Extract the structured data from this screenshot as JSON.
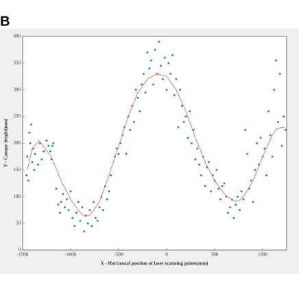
{
  "chart_data": {
    "type": "scatter",
    "panel_label": "B",
    "x_label": "X - Horizontal position of laser scanning points(mm)",
    "y_label": "Y - Canopy height(mm)",
    "xlim": [
      -1500,
      1250
    ],
    "ylim": [
      0,
      400
    ],
    "xticks": [
      -1500,
      -1000,
      -500,
      0,
      500,
      1000
    ],
    "yticks": [
      0,
      50,
      100,
      150,
      200,
      250,
      300,
      350,
      400
    ],
    "color": "#2e86c1",
    "x": [
      -1460,
      -1450,
      -1440,
      -1430,
      -1420,
      -1410,
      -1400,
      -1390,
      -1380,
      -1370,
      -1340,
      -1320,
      -1300,
      -1280,
      -1250,
      -1230,
      -1210,
      -1200,
      -1190,
      -1180,
      -1150,
      -1130,
      -1110,
      -1100,
      -1080,
      -1060,
      -1040,
      -1020,
      -1000,
      -980,
      -960,
      -940,
      -920,
      -900,
      -880,
      -860,
      -840,
      -820,
      -800,
      -780,
      -760,
      -740,
      -720,
      -700,
      -680,
      -660,
      -640,
      -620,
      -600,
      -580,
      -540,
      -520,
      -500,
      -480,
      -460,
      -440,
      -420,
      -400,
      -380,
      -360,
      -340,
      -320,
      -300,
      -280,
      -260,
      -240,
      -220,
      -200,
      -180,
      -160,
      -140,
      -120,
      -100,
      -80,
      -60,
      -40,
      -20,
      0,
      20,
      40,
      60,
      80,
      100,
      120,
      140,
      160,
      180,
      200,
      220,
      240,
      260,
      280,
      300,
      320,
      340,
      360,
      380,
      400,
      420,
      440,
      460,
      480,
      500,
      520,
      540,
      560,
      580,
      600,
      620,
      640,
      660,
      680,
      700,
      720,
      740,
      760,
      780,
      800,
      820,
      840,
      860,
      880,
      900,
      920,
      940,
      960,
      980,
      1000,
      1020,
      1040,
      1060,
      1080,
      1100,
      1120,
      1140,
      1160,
      1180,
      1200,
      1220,
      1240
    ],
    "values": [
      140,
      175,
      130,
      220,
      200,
      235,
      165,
      190,
      150,
      180,
      160,
      200,
      170,
      185,
      205,
      195,
      185,
      170,
      195,
      200,
      115,
      85,
      70,
      90,
      105,
      80,
      95,
      75,
      110,
      60,
      45,
      70,
      90,
      55,
      80,
      35,
      65,
      50,
      75,
      45,
      90,
      60,
      55,
      80,
      100,
      75,
      120,
      95,
      110,
      140,
      175,
      190,
      180,
      200,
      215,
      230,
      180,
      250,
      225,
      270,
      240,
      300,
      285,
      260,
      310,
      330,
      295,
      370,
      340,
      355,
      310,
      375,
      330,
      390,
      345,
      320,
      360,
      300,
      350,
      330,
      365,
      290,
      320,
      230,
      300,
      270,
      240,
      250,
      210,
      260,
      200,
      225,
      170,
      190,
      160,
      140,
      175,
      120,
      155,
      165,
      110,
      140,
      130,
      150,
      115,
      95,
      120,
      125,
      100,
      70,
      80,
      95,
      60,
      85,
      100,
      75,
      110,
      95,
      225,
      180,
      115,
      130,
      90,
      150,
      200,
      160,
      210,
      175,
      190,
      140,
      260,
      215,
      175,
      300,
      355,
      240,
      330,
      195,
      250,
      225
    ],
    "fit": {
      "color": "#e07b53",
      "x": [
        -1450,
        -1400,
        -1330,
        -1200,
        -1100,
        -1000,
        -900,
        -850,
        -800,
        -700,
        -600,
        -500,
        -400,
        -300,
        -200,
        -100,
        0,
        100,
        200,
        300,
        400,
        500,
        600,
        700,
        750,
        800,
        900,
        1000,
        1100,
        1150,
        1230
      ],
      "values": [
        150,
        190,
        205,
        175,
        130,
        95,
        70,
        63,
        65,
        90,
        140,
        195,
        250,
        295,
        320,
        330,
        325,
        300,
        260,
        210,
        165,
        130,
        105,
        92,
        92,
        100,
        130,
        175,
        215,
        228,
        230
      ]
    }
  }
}
